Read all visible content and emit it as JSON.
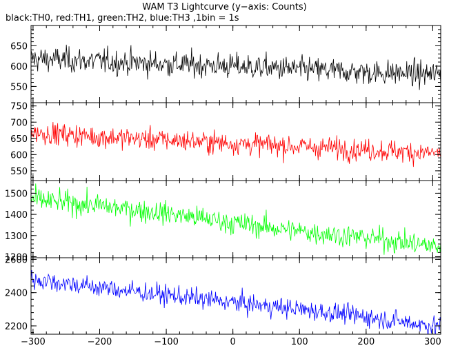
{
  "title": "WAM T3 Lightcurve (y−axis: Counts)",
  "subtitle": "black:TH0, red:TH1, green:TH2, blue:TH3 ,1bin = 1s",
  "chart_data": [
    {
      "type": "line",
      "name": "TH0",
      "color": "#000000",
      "x_range": [
        -303,
        312
      ],
      "ylim": [
        510,
        700
      ],
      "y_ticks": [
        550,
        600,
        650
      ],
      "x_ticks": [
        -300,
        -200,
        -100,
        0,
        100,
        200,
        300
      ],
      "trend": {
        "x": [
          -300,
          -200,
          -100,
          0,
          100,
          200,
          300
        ],
        "y": [
          618,
          612,
          605,
          600,
          592,
          585,
          580
        ]
      },
      "noise_amplitude": 22
    },
    {
      "type": "line",
      "name": "TH1",
      "color": "#ff0000",
      "x_range": [
        -303,
        312
      ],
      "ylim": [
        520,
        760
      ],
      "y_ticks": [
        550,
        600,
        650,
        700,
        750
      ],
      "x_ticks": [
        -300,
        -200,
        -100,
        0,
        100,
        200,
        300
      ],
      "trend": {
        "x": [
          -300,
          -200,
          -100,
          0,
          100,
          200,
          300
        ],
        "y": [
          668,
          655,
          645,
          635,
          625,
          615,
          605
        ]
      },
      "noise_amplitude": 24
    },
    {
      "type": "line",
      "name": "TH2",
      "color": "#00ff00",
      "x_range": [
        -303,
        312
      ],
      "ylim": [
        1195,
        1560
      ],
      "y_ticks": [
        1200,
        1300,
        1400,
        1500
      ],
      "x_ticks": [
        -300,
        -200,
        -100,
        0,
        100,
        200,
        300
      ],
      "trend": {
        "x": [
          -300,
          -200,
          -100,
          0,
          100,
          200,
          300
        ],
        "y": [
          1470,
          1440,
          1405,
          1360,
          1320,
          1290,
          1250
        ]
      },
      "noise_amplitude": 38
    },
    {
      "type": "line",
      "name": "TH3",
      "color": "#0000ff",
      "x_range": [
        -303,
        312
      ],
      "ylim": [
        2150,
        2610
      ],
      "y_ticks": [
        2200,
        2400,
        2600
      ],
      "x_ticks": [
        -300,
        -200,
        -100,
        0,
        100,
        200,
        300
      ],
      "trend": {
        "x": [
          -300,
          -200,
          -100,
          0,
          100,
          200,
          300
        ],
        "y": [
          2480,
          2430,
          2385,
          2340,
          2300,
          2255,
          2200
        ]
      },
      "noise_amplitude": 42
    }
  ]
}
